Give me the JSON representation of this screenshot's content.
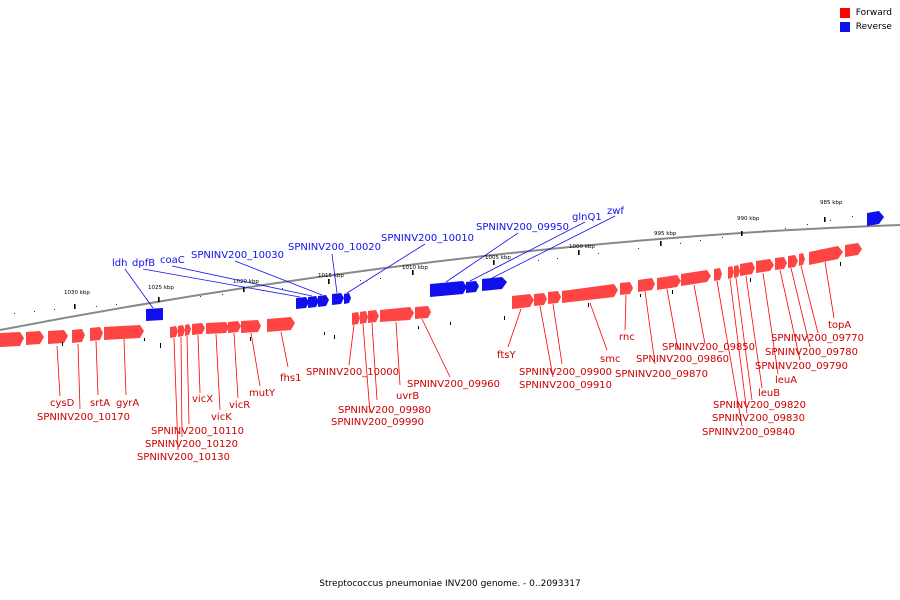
{
  "colors": {
    "forward": "#ff0000",
    "reverse": "#1010ee",
    "backbone": "#888888"
  },
  "legend": [
    {
      "label": "Forward",
      "color": "#ff0000"
    },
    {
      "label": "Reverse",
      "color": "#1010ee"
    }
  ],
  "caption": "Streptococcus pneumoniae INV200 genome. - 0..2093317",
  "ticks": [
    {
      "label": "1030 kbp"
    },
    {
      "label": "1025 kbp"
    },
    {
      "label": "1020 kbp"
    },
    {
      "label": "1015 kbp"
    },
    {
      "label": "1010 kbp"
    },
    {
      "label": "1005 kbp"
    },
    {
      "label": "1000 kbp"
    },
    {
      "label": "995 kbp"
    },
    {
      "label": "990 kbp"
    },
    {
      "label": "985 kbp"
    }
  ],
  "reverse_labels": [
    {
      "label": "ldh"
    },
    {
      "label": "dpfB"
    },
    {
      "label": "coaC"
    },
    {
      "label": "SPNINV200_10030"
    },
    {
      "label": "SPNINV200_10020"
    },
    {
      "label": "SPNINV200_10010"
    },
    {
      "label": "SPNINV200_09950"
    },
    {
      "label": "glnQ1"
    },
    {
      "label": "zwf"
    }
  ],
  "forward_labels": [
    {
      "label": "cysD"
    },
    {
      "label": "SPNINV200_10170"
    },
    {
      "label": "srtA"
    },
    {
      "label": "gyrA"
    },
    {
      "label": "vicX"
    },
    {
      "label": "vicK"
    },
    {
      "label": "vicR"
    },
    {
      "label": "SPNINV200_10110"
    },
    {
      "label": "SPNINV200_10120"
    },
    {
      "label": "SPNINV200_10130"
    },
    {
      "label": "mutY"
    },
    {
      "label": "fhs1"
    },
    {
      "label": "SPNINV200_10000"
    },
    {
      "label": "uvrB"
    },
    {
      "label": "SPNINV200_09980"
    },
    {
      "label": "SPNINV200_09990"
    },
    {
      "label": "SPNINV200_09960"
    },
    {
      "label": "ftsY"
    },
    {
      "label": "SPNINV200_09900"
    },
    {
      "label": "SPNINV200_09910"
    },
    {
      "label": "smc"
    },
    {
      "label": "rnc"
    },
    {
      "label": "SPNINV200_09860"
    },
    {
      "label": "SPNINV200_09870"
    },
    {
      "label": "SPNINV200_09850"
    },
    {
      "label": "SPNINV200_09820"
    },
    {
      "label": "SPNINV200_09830"
    },
    {
      "label": "SPNINV200_09840"
    },
    {
      "label": "leuB"
    },
    {
      "label": "leuA"
    },
    {
      "label": "SPNINV200_09790"
    },
    {
      "label": "SPNINV200_09780"
    },
    {
      "label": "SPNINV200_09770"
    },
    {
      "label": "topA"
    }
  ]
}
